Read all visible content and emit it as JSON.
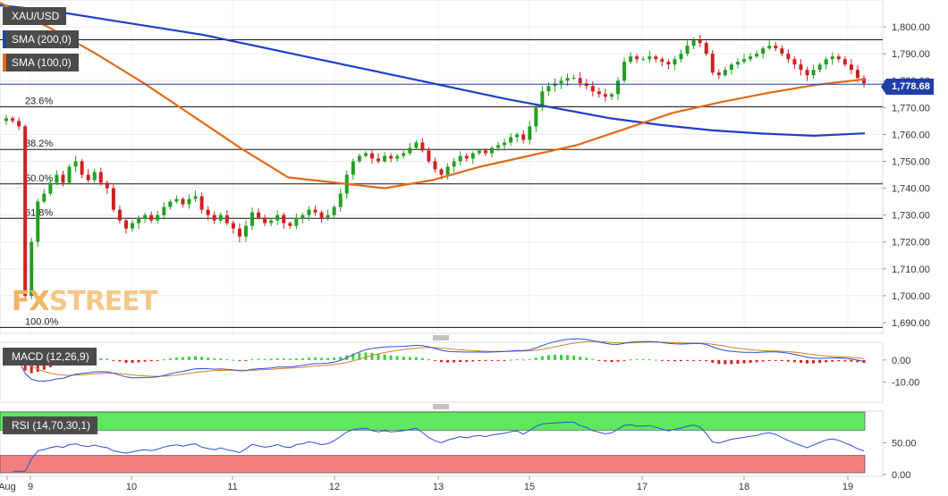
{
  "symbol": "XAU/USD",
  "legend": {
    "sma200": "SMA (200,0)",
    "sma100": "SMA (100,0)",
    "macd": "MACD (12,26,9)",
    "rsi": "RSI (14,70,30,1)"
  },
  "current_price_label": "1,778.68",
  "logo": {
    "fx": "FX",
    "rest": "STREET"
  },
  "colors": {
    "sma200": "#1f3ec8",
    "sma100": "#e06c1a",
    "bull": "#22a022",
    "bear": "#d02020",
    "macd_line": "#2a4fd8",
    "signal_line": "#e07a28",
    "rsi_line": "#2a4fd8",
    "overbought": "#5ee85e",
    "oversold": "#f28080"
  },
  "chart_data": [
    {
      "type": "candlestick",
      "title": "XAU/USD",
      "x_ticks": [
        "Aug",
        "9",
        "10",
        "11",
        "12",
        "13",
        "15",
        "17",
        "18",
        "19"
      ],
      "y_ticks": [
        "1,690.00",
        "1,700.00",
        "1,710.00",
        "1,720.00",
        "1,730.00",
        "1,740.00",
        "1,750.00",
        "1,760.00",
        "1,770.00",
        "1,780.00",
        "1,790.00",
        "1,800.00"
      ],
      "ylim": [
        1686,
        1810
      ],
      "fib_levels": [
        {
          "label": "",
          "value": 1795.2
        },
        {
          "label": "23.6%",
          "value": 1770.3
        },
        {
          "label": "38.2%",
          "value": 1754.4
        },
        {
          "label": "50.0%",
          "value": 1741.6
        },
        {
          "label": "61.8%",
          "value": 1728.8
        },
        {
          "label": "100.0%",
          "value": 1688.2
        }
      ],
      "current_price": 1778.68,
      "candles_close": [
        1766,
        1765,
        1763,
        1700,
        1720,
        1735,
        1738,
        1742,
        1745,
        1742,
        1748,
        1750,
        1745,
        1743,
        1746,
        1742,
        1740,
        1732,
        1728,
        1725,
        1727,
        1729,
        1730,
        1728,
        1730,
        1733,
        1735,
        1736,
        1734,
        1736,
        1737,
        1732,
        1730,
        1728,
        1730,
        1727,
        1725,
        1722,
        1726,
        1731,
        1729,
        1727,
        1728,
        1730,
        1727,
        1726,
        1729,
        1730,
        1732,
        1731,
        1729,
        1730,
        1733,
        1738,
        1745,
        1750,
        1752,
        1753,
        1751,
        1750,
        1752,
        1751,
        1752,
        1753,
        1755,
        1757,
        1754,
        1750,
        1747,
        1745,
        1748,
        1750,
        1752,
        1751,
        1753,
        1754,
        1753,
        1755,
        1756,
        1757,
        1759,
        1760,
        1758,
        1763,
        1770,
        1776,
        1778,
        1779,
        1780,
        1781,
        1781,
        1779,
        1778,
        1776,
        1775,
        1774,
        1775,
        1780,
        1787,
        1789,
        1788,
        1788,
        1789,
        1788,
        1787,
        1786,
        1788,
        1790,
        1793,
        1795,
        1794,
        1790,
        1783,
        1782,
        1784,
        1786,
        1787,
        1788,
        1789,
        1790,
        1792,
        1793,
        1792,
        1790,
        1788,
        1786,
        1784,
        1782,
        1784,
        1786,
        1788,
        1789,
        1788,
        1786,
        1784,
        1781,
        1779
      ],
      "sma200": [
        1808,
        1806,
        1803,
        1800,
        1797,
        1793,
        1789,
        1785,
        1781,
        1777,
        1773,
        1769.5,
        1766,
        1763.5,
        1761.5,
        1760.3,
        1759.5,
        1760.4
      ],
      "sma100": [
        1809,
        1800,
        1790,
        1779,
        1767,
        1755,
        1744,
        1742,
        1740,
        1743,
        1748,
        1752,
        1756,
        1762,
        1768,
        1772,
        1775.5,
        1778.5,
        1780.5
      ]
    },
    {
      "type": "bar",
      "title": "MACD (12,26,9)",
      "y_ticks": [
        "0.00",
        "-10.00"
      ],
      "ylim": [
        -19,
        8
      ]
    },
    {
      "type": "line",
      "title": "RSI (14,70,30,1)",
      "y_ticks": [
        "50.00",
        "0.00"
      ],
      "ylim": [
        -3,
        100
      ],
      "overbought": 70,
      "oversold": 30
    }
  ]
}
